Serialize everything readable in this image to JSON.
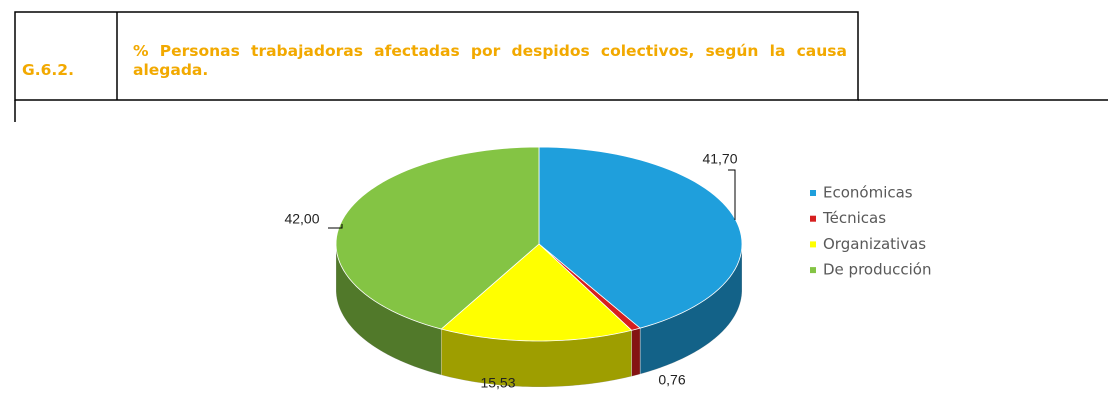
{
  "chart_data": {
    "type": "pie",
    "figure_number": "G.6.2.",
    "title": "% Personas trabajadoras afectadas por despidos colectivos, según la causa alegada.",
    "categories": [
      "Económicas",
      "Técnicas",
      "Organizativas",
      "De producción"
    ],
    "values": [
      41.7,
      0.76,
      15.53,
      42.0
    ],
    "value_labels": [
      "41,70",
      "0,76",
      "15,53",
      "42,00"
    ],
    "colors": [
      "#1f9fdc",
      "#d61f1f",
      "#ffff00",
      "#84c444"
    ],
    "legend": "right"
  }
}
